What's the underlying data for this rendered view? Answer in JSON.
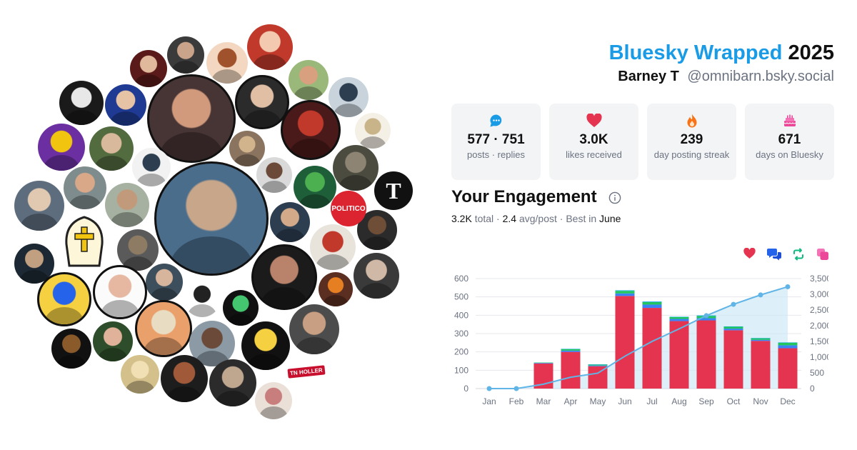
{
  "header": {
    "brand": "Bluesky Wrapped",
    "year": "2025",
    "display_name": "Barney T",
    "handle": "@omnibarn.bsky.social"
  },
  "stats": [
    {
      "icon": "chat-bubble-icon",
      "color": "#1a9be6",
      "value": "577 · 751",
      "label": "posts · replies"
    },
    {
      "icon": "heart-icon",
      "color": "#e5344f",
      "value": "3.0K",
      "label": "likes received"
    },
    {
      "icon": "flame-icon",
      "color": "#f97316",
      "value": "239",
      "label": "day posting streak"
    },
    {
      "icon": "cake-icon",
      "color": "#ec4899",
      "value": "671",
      "label": "days on Bluesky"
    }
  ],
  "engagement": {
    "title": "Your Engagement",
    "total": "3.2K",
    "total_suffix": "total ·",
    "avg": "2.4",
    "avg_suffix": "avg/post · Best in",
    "best_month": "June"
  },
  "legend_icons": [
    {
      "name": "likes-legend-icon",
      "color": "#e5344f"
    },
    {
      "name": "replies-legend-icon",
      "color": "#2563eb"
    },
    {
      "name": "reposts-legend-icon",
      "color": "#10b981"
    },
    {
      "name": "quotes-legend-icon",
      "color": "#ec4899"
    }
  ],
  "avatars_badges": {
    "politico": "POLITICO",
    "nyt": "T",
    "tn_holler": "TN HOLLER"
  },
  "colors": {
    "likes": "#e5344f",
    "replies": "#3b82f6",
    "reposts": "#22c55e",
    "quotes": "#0ea5e9",
    "cumulative_line": "#60b5e6",
    "cumulative_fill": "#cfe8f7"
  },
  "chart_data": {
    "type": "bar",
    "categories": [
      "Jan",
      "Feb",
      "Mar",
      "Apr",
      "May",
      "Jun",
      "Jul",
      "Aug",
      "Sep",
      "Oct",
      "Nov",
      "Dec"
    ],
    "series": [
      {
        "values": [
          0,
          0,
          137,
          200,
          122,
          505,
          440,
          368,
          372,
          318,
          260,
          220
        ]
      },
      {
        "values": [
          0,
          0,
          3,
          7,
          4,
          14,
          18,
          12,
          12,
          9,
          6,
          16
        ]
      },
      {
        "values": [
          0,
          0,
          2,
          8,
          5,
          14,
          14,
          10,
          12,
          10,
          8,
          14
        ]
      },
      {
        "values": [
          0,
          0,
          0,
          2,
          1,
          3,
          3,
          2,
          3,
          2,
          2,
          2
        ]
      }
    ],
    "line": {
      "values": [
        0,
        0,
        140,
        360,
        490,
        1030,
        1500,
        1900,
        2320,
        2680,
        2980,
        3240
      ]
    },
    "left_axis": {
      "ticks": [
        0,
        100,
        200,
        300,
        400,
        500,
        600
      ],
      "ylim": [
        0,
        600
      ]
    },
    "right_axis": {
      "ticks": [
        "0",
        "500",
        "1,000",
        "1,500",
        "2,000",
        "2,500",
        "3,000",
        "3,500"
      ],
      "ylim": [
        0,
        3500
      ]
    },
    "grid": true
  }
}
